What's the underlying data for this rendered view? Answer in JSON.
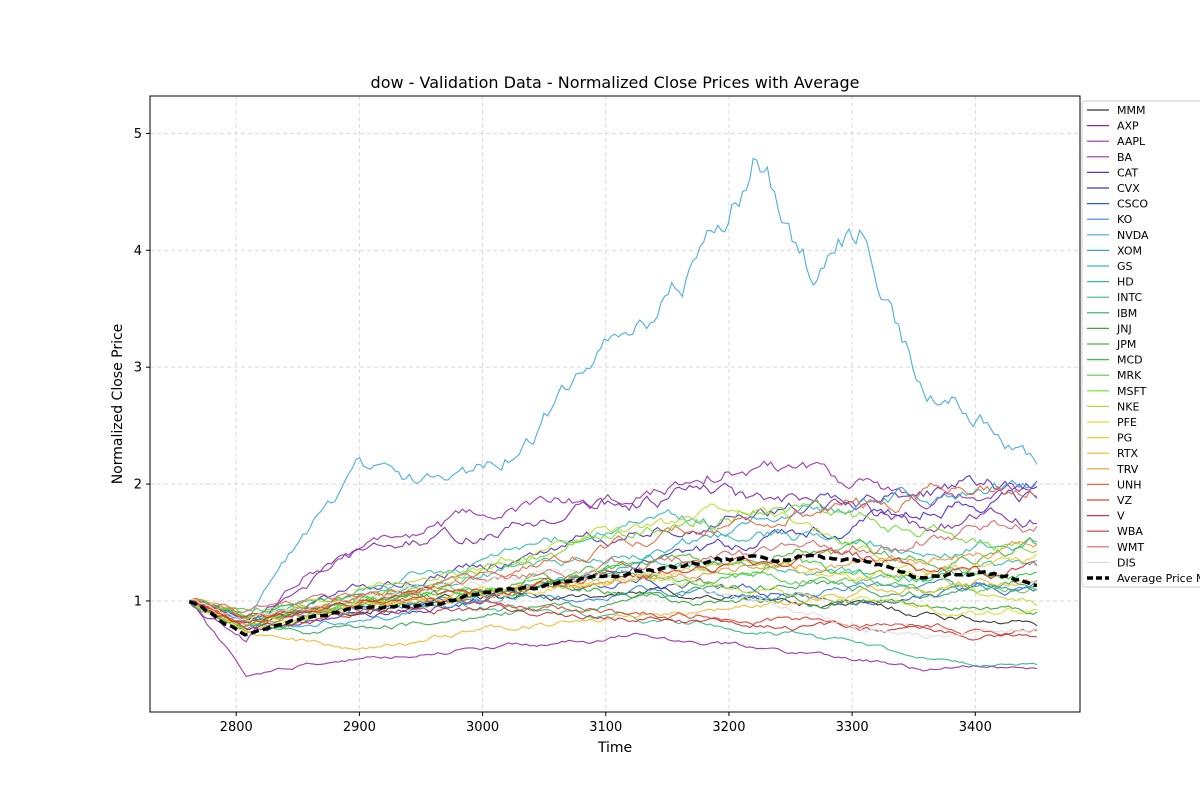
{
  "chart_data": {
    "type": "line",
    "title": "dow - Validation Data - Normalized Close Prices with Average",
    "xlabel": "Time",
    "ylabel": "Normalized Close Price",
    "xlim": [
      2730,
      3485
    ],
    "ylim": [
      0.05,
      5.32
    ],
    "xticks": [
      2800,
      2900,
      3000,
      3100,
      3200,
      3300,
      3400
    ],
    "yticks": [
      1,
      2,
      3,
      4,
      5
    ],
    "grid": true,
    "legend_position": "right",
    "x_start": 2762,
    "x_end": 3450,
    "series": [
      {
        "name": "MMM",
        "color": "#333333",
        "values": [
          1.0,
          0.85,
          0.9,
          0.95,
          0.98,
          1.0,
          1.02,
          1.05,
          1.08,
          1.05,
          1.02,
          0.98,
          0.95,
          0.9,
          0.85,
          0.8
        ]
      },
      {
        "name": "AXP",
        "color": "#7b2fa8",
        "values": [
          1.0,
          0.8,
          1.15,
          1.4,
          1.5,
          1.55,
          1.65,
          1.8,
          1.85,
          1.95,
          1.85,
          1.8,
          1.75,
          1.65,
          1.7,
          1.7
        ]
      },
      {
        "name": "AAPL",
        "color": "#9b30b0",
        "values": [
          1.0,
          0.65,
          1.2,
          1.5,
          1.6,
          1.7,
          1.8,
          1.85,
          1.9,
          2.1,
          2.15,
          2.2,
          2.0,
          1.8,
          1.85,
          1.95
        ]
      },
      {
        "name": "BA",
        "color": "#9b2fa8",
        "values": [
          1.0,
          0.35,
          0.45,
          0.5,
          0.55,
          0.6,
          0.62,
          0.65,
          0.7,
          0.65,
          0.6,
          0.55,
          0.5,
          0.4,
          0.45,
          0.42
        ]
      },
      {
        "name": "CAT",
        "color": "#5533bb",
        "values": [
          1.0,
          0.8,
          0.95,
          1.1,
          1.2,
          1.3,
          1.35,
          1.5,
          1.6,
          1.7,
          1.75,
          1.8,
          1.85,
          1.9,
          2.0,
          1.95
        ]
      },
      {
        "name": "CVX",
        "color": "#4433cc",
        "values": [
          1.0,
          0.75,
          0.8,
          0.85,
          0.9,
          1.0,
          1.1,
          1.2,
          1.3,
          1.4,
          1.5,
          1.6,
          1.7,
          1.8,
          1.85,
          1.9
        ]
      },
      {
        "name": "CSCO",
        "color": "#3355dd",
        "values": [
          1.0,
          0.85,
          0.9,
          0.95,
          1.0,
          1.05,
          1.1,
          1.15,
          1.2,
          1.15,
          1.1,
          1.05,
          1.0,
          1.05,
          1.1,
          1.15
        ]
      },
      {
        "name": "KO",
        "color": "#3388dd",
        "values": [
          1.0,
          0.85,
          0.9,
          0.92,
          0.95,
          1.0,
          1.02,
          1.05,
          1.08,
          1.1,
          1.05,
          1.1,
          1.12,
          1.15,
          1.1,
          1.15
        ]
      },
      {
        "name": "NVDA",
        "color": "#44aadd",
        "values": [
          1.0,
          0.8,
          1.5,
          2.1,
          2.0,
          2.1,
          2.4,
          2.95,
          3.4,
          3.9,
          4.8,
          3.8,
          4.2,
          2.8,
          2.6,
          2.1
        ]
      },
      {
        "name": "XOM",
        "color": "#33aacc",
        "values": [
          1.0,
          0.75,
          0.8,
          0.85,
          0.9,
          1.0,
          1.1,
          1.2,
          1.3,
          1.5,
          1.7,
          1.8,
          1.85,
          1.9,
          1.95,
          2.05
        ]
      },
      {
        "name": "GS",
        "color": "#33bbbb",
        "values": [
          1.0,
          0.8,
          0.95,
          1.1,
          1.2,
          1.3,
          1.4,
          1.6,
          1.7,
          1.65,
          1.6,
          1.55,
          1.5,
          1.45,
          1.5,
          1.55
        ]
      },
      {
        "name": "HD",
        "color": "#33bbaa",
        "values": [
          1.0,
          0.85,
          0.95,
          1.0,
          1.1,
          1.2,
          1.3,
          1.35,
          1.4,
          1.35,
          1.3,
          1.25,
          1.2,
          1.2,
          1.25,
          1.3
        ]
      },
      {
        "name": "INTC",
        "color": "#33bb88",
        "values": [
          1.0,
          0.85,
          0.9,
          0.95,
          1.0,
          0.95,
          0.9,
          0.88,
          0.85,
          0.8,
          0.75,
          0.7,
          0.6,
          0.5,
          0.45,
          0.45
        ]
      },
      {
        "name": "IBM",
        "color": "#33aa55",
        "values": [
          1.0,
          0.8,
          0.75,
          0.78,
          0.8,
          0.85,
          0.9,
          0.95,
          1.0,
          1.05,
          1.1,
          1.15,
          1.1,
          1.05,
          1.1,
          1.15
        ]
      },
      {
        "name": "JNJ",
        "color": "#33aa33",
        "values": [
          1.0,
          0.9,
          0.95,
          1.0,
          1.02,
          1.05,
          1.08,
          1.1,
          1.05,
          1.0,
          1.02,
          1.0,
          0.98,
          0.95,
          0.92,
          0.9
        ]
      },
      {
        "name": "JPM",
        "color": "#44bb33",
        "values": [
          1.0,
          0.75,
          0.85,
          0.95,
          1.05,
          1.1,
          1.2,
          1.25,
          1.3,
          1.35,
          1.4,
          1.45,
          1.4,
          1.35,
          1.4,
          1.45
        ]
      },
      {
        "name": "MCD",
        "color": "#33cc33",
        "values": [
          1.0,
          0.8,
          0.9,
          1.0,
          1.05,
          1.1,
          1.15,
          1.2,
          1.25,
          1.2,
          1.25,
          1.3,
          1.25,
          1.2,
          1.25,
          1.2
        ]
      },
      {
        "name": "MRK",
        "color": "#55cc44",
        "values": [
          1.0,
          0.9,
          0.95,
          1.0,
          1.05,
          1.1,
          1.15,
          1.2,
          1.25,
          1.3,
          1.25,
          1.2,
          1.15,
          1.1,
          1.05,
          1.1
        ]
      },
      {
        "name": "MSFT",
        "color": "#77dd33",
        "values": [
          1.0,
          0.85,
          0.9,
          1.0,
          1.1,
          1.2,
          1.35,
          1.5,
          1.6,
          1.7,
          1.75,
          1.8,
          1.7,
          1.6,
          1.5,
          1.45
        ]
      },
      {
        "name": "NKE",
        "color": "#bbdd33",
        "values": [
          1.0,
          0.8,
          0.95,
          1.1,
          1.2,
          1.3,
          1.4,
          1.55,
          1.65,
          1.7,
          1.75,
          1.6,
          1.4,
          1.2,
          1.1,
          1.0
        ]
      },
      {
        "name": "PFE",
        "color": "#dddd33",
        "values": [
          1.0,
          0.75,
          0.85,
          0.95,
          1.0,
          1.05,
          1.1,
          1.15,
          1.2,
          1.15,
          1.1,
          1.05,
          1.0,
          0.95,
          0.9,
          0.92
        ]
      },
      {
        "name": "PG",
        "color": "#eecc33",
        "values": [
          1.0,
          0.85,
          0.9,
          0.95,
          1.0,
          1.05,
          1.1,
          1.15,
          1.2,
          1.25,
          1.3,
          1.25,
          1.2,
          1.25,
          1.3,
          1.35
        ]
      },
      {
        "name": "RTX",
        "color": "#eebb33",
        "values": [
          1.0,
          0.7,
          0.65,
          0.6,
          0.65,
          0.75,
          0.8,
          0.85,
          0.9,
          0.92,
          0.95,
          1.0,
          1.05,
          1.1,
          1.15,
          1.2
        ]
      },
      {
        "name": "TRV",
        "color": "#ee9933",
        "values": [
          1.0,
          0.85,
          0.9,
          0.95,
          1.0,
          1.05,
          1.1,
          1.15,
          1.2,
          1.25,
          1.3,
          1.35,
          1.3,
          1.35,
          1.4,
          1.45
        ]
      },
      {
        "name": "UNH",
        "color": "#ee6633",
        "values": [
          1.0,
          0.8,
          0.95,
          1.05,
          1.1,
          1.2,
          1.3,
          1.4,
          1.5,
          1.6,
          1.7,
          1.8,
          1.85,
          1.9,
          1.95,
          2.0
        ]
      },
      {
        "name": "VZ",
        "color": "#dd4433",
        "values": [
          1.0,
          0.85,
          0.9,
          0.95,
          1.0,
          0.98,
          0.95,
          0.92,
          0.9,
          0.88,
          0.85,
          0.82,
          0.8,
          0.78,
          0.75,
          0.75
        ]
      },
      {
        "name": "V",
        "color": "#dd3333",
        "values": [
          1.0,
          0.8,
          0.9,
          1.0,
          1.05,
          1.1,
          1.15,
          1.2,
          1.25,
          1.3,
          1.35,
          1.4,
          1.35,
          1.3,
          1.25,
          1.3
        ]
      },
      {
        "name": "WBA",
        "color": "#cc3333",
        "values": [
          1.0,
          0.8,
          0.85,
          0.9,
          0.95,
          0.95,
          0.9,
          0.88,
          0.85,
          0.82,
          0.8,
          0.78,
          0.75,
          0.72,
          0.7,
          0.7
        ]
      },
      {
        "name": "WMT",
        "color": "#dd6666",
        "values": [
          1.0,
          0.9,
          1.0,
          1.05,
          1.1,
          1.15,
          1.2,
          1.25,
          1.3,
          1.35,
          1.4,
          1.45,
          1.5,
          1.55,
          1.6,
          1.65
        ]
      },
      {
        "name": "DIS",
        "color": "#dddddd",
        "values": [
          1.0,
          0.85,
          0.95,
          1.05,
          1.1,
          1.15,
          1.2,
          1.25,
          1.2,
          1.1,
          1.0,
          0.9,
          0.8,
          0.7,
          0.75,
          0.75
        ]
      }
    ],
    "average": {
      "name": "Average Price Movement",
      "legend_label": "Average Price M",
      "color": "#000000",
      "values": [
        1.0,
        0.7,
        0.85,
        0.95,
        0.95,
        1.05,
        1.1,
        1.2,
        1.25,
        1.3,
        1.35,
        1.4,
        1.35,
        1.2,
        1.25,
        1.15
      ]
    }
  }
}
